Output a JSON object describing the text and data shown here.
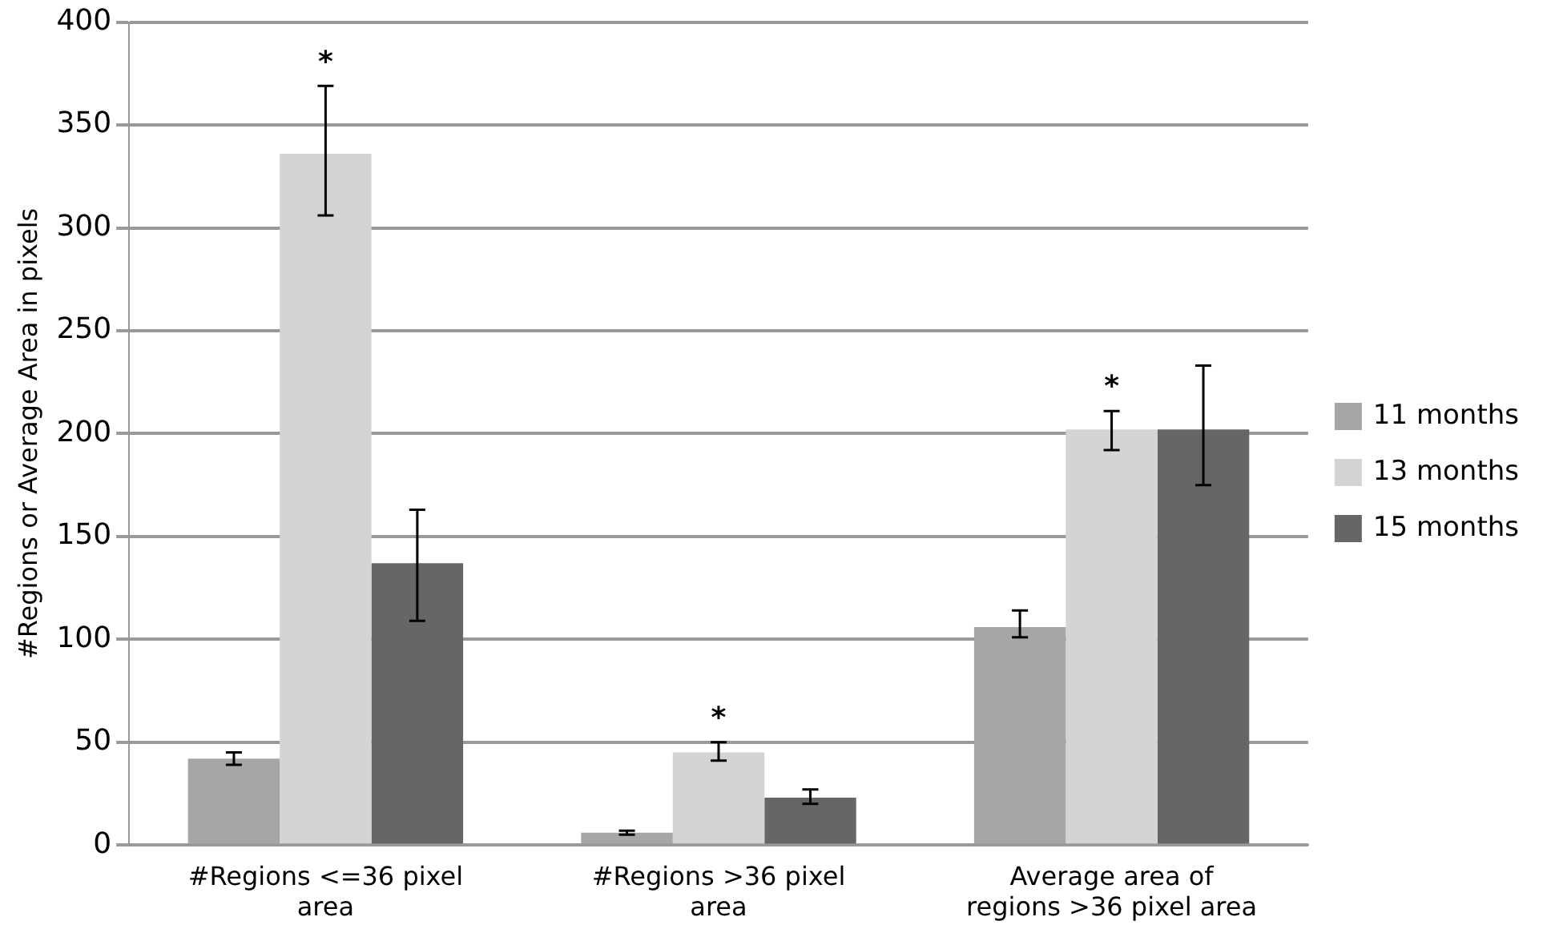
{
  "chart_data": {
    "type": "bar",
    "ylabel": "#Regions or Average Area in pixels",
    "categories": [
      "#Regions <=36 pixel area",
      "#Regions >36 pixel area",
      "Average area of regions >36 pixel area"
    ],
    "series": [
      {
        "name": "11 months",
        "color": "#a6a6a6",
        "values": [
          42,
          6,
          106
        ],
        "errors": [
          [
            39,
            45
          ],
          [
            5,
            7
          ],
          [
            101,
            114
          ]
        ]
      },
      {
        "name": "13 months",
        "color": "#d4d4d4",
        "values": [
          336,
          45,
          202
        ],
        "errors": [
          [
            306,
            369
          ],
          [
            41,
            50
          ],
          [
            192,
            211
          ]
        ]
      },
      {
        "name": "15 months",
        "color": "#666666",
        "values": [
          137,
          23,
          202
        ],
        "errors": [
          [
            109,
            163
          ],
          [
            20,
            27
          ],
          [
            175,
            233
          ]
        ]
      }
    ],
    "ylim": [
      0,
      400
    ],
    "yticks": [
      0,
      50,
      100,
      150,
      200,
      250,
      300,
      350,
      400
    ],
    "grid": "y",
    "legend": "right",
    "annotations": [
      "*",
      "*",
      "*"
    ]
  }
}
